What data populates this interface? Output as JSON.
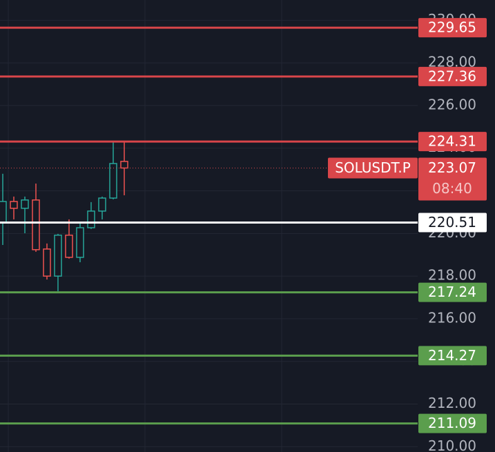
{
  "chart_data": {
    "type": "candlestick",
    "categories": [
      null,
      null,
      null,
      null,
      null,
      null,
      null,
      null,
      null,
      null,
      null,
      null
    ],
    "open": [
      220.53,
      221.5,
      221.18,
      221.57,
      219.27,
      218.0,
      219.92,
      218.88,
      220.27,
      221.05,
      221.66,
      223.38
    ],
    "high": [
      222.8,
      221.73,
      221.73,
      222.34,
      219.53,
      219.98,
      220.66,
      220.53,
      221.47,
      221.73,
      224.32,
      224.31
    ],
    "low": [
      219.46,
      220.66,
      220.01,
      219.14,
      217.84,
      217.29,
      218.82,
      218.65,
      220.21,
      220.66,
      221.6,
      221.79
    ],
    "close": [
      221.5,
      221.18,
      221.57,
      219.24,
      218.0,
      219.92,
      218.88,
      220.27,
      221.05,
      221.66,
      223.28,
      223.07
    ],
    "up_color": "#26a69a",
    "down_color": "#ef5350",
    "ylim": [
      209.75,
      230.95
    ],
    "yticks": [
      {
        "value": 210,
        "label": "210.00"
      },
      {
        "value": 212,
        "label": "212.00"
      },
      {
        "value": 214,
        "label": "214.00"
      },
      {
        "value": 216,
        "label": "216.00"
      },
      {
        "value": 218,
        "label": "218.00"
      },
      {
        "value": 220,
        "label": "220.00"
      },
      {
        "value": 222,
        "label": "222.00"
      },
      {
        "value": 224,
        "label": "224.00"
      },
      {
        "value": 226,
        "label": "226.00"
      },
      {
        "value": 228,
        "label": "228.00"
      },
      {
        "value": 230,
        "label": "230.00"
      }
    ],
    "grid": true,
    "levels": [
      {
        "value": 229.65,
        "color": "#d9464a"
      },
      {
        "value": 227.36,
        "color": "#d9464a"
      },
      {
        "value": 224.31,
        "color": "#d9464a"
      },
      {
        "value": 220.51,
        "color": "#ffffff"
      },
      {
        "value": 217.24,
        "color": "#5b9e4d"
      },
      {
        "value": 214.27,
        "color": "#5b9e4d"
      },
      {
        "value": 211.09,
        "color": "#5b9e4d"
      }
    ],
    "current_price": {
      "symbol": "SOLUSDT.P",
      "value": 223.07,
      "countdown": "08:40",
      "color": "#d9464a"
    }
  }
}
